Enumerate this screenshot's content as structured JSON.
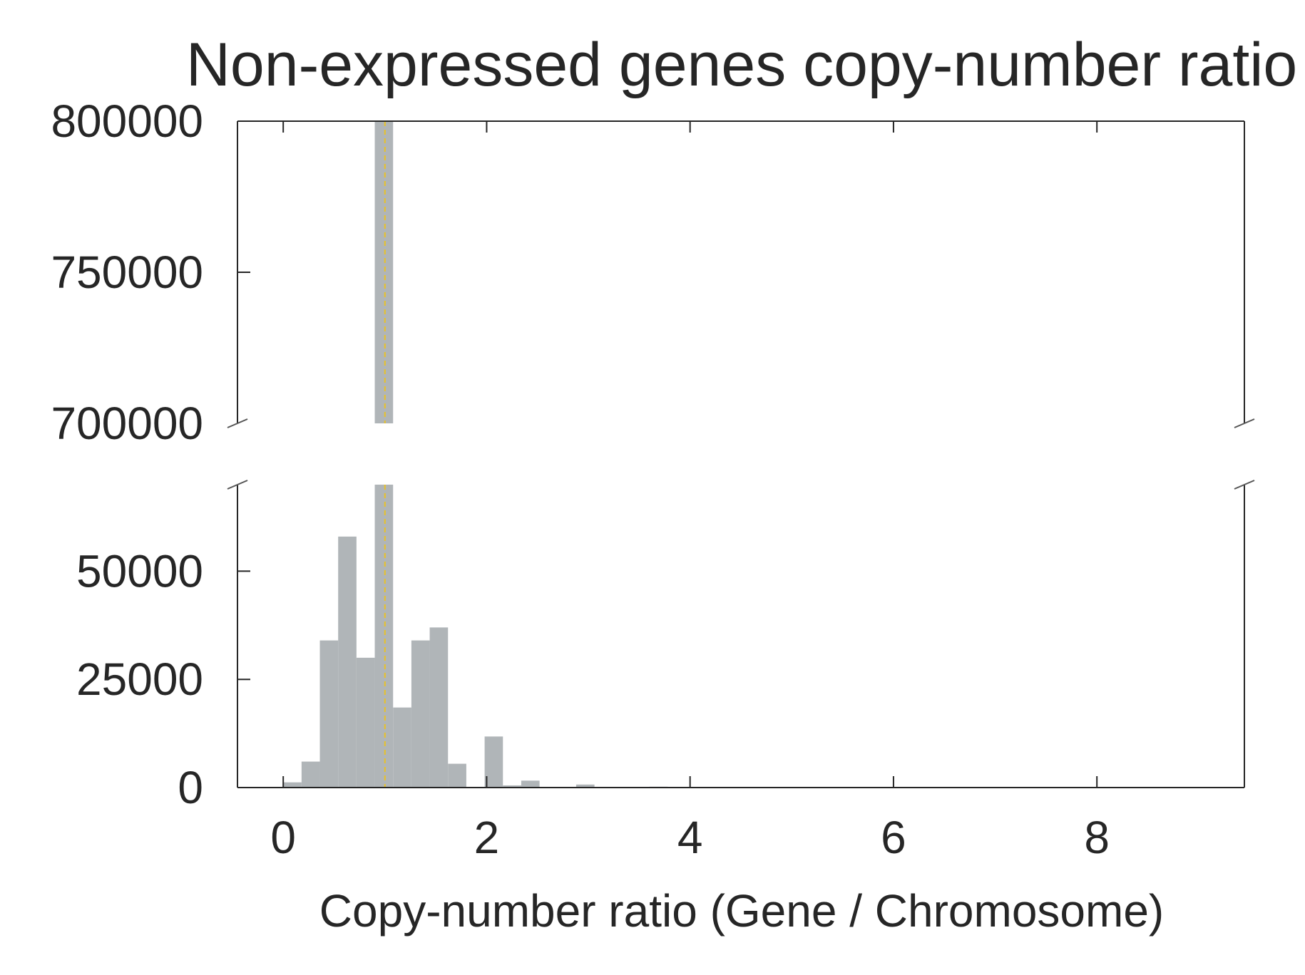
{
  "chart_data": {
    "type": "bar",
    "title": "Non-expressed genes copy-number ratio",
    "xlabel": "Copy-number ratio (Gene / Chromosome)",
    "ylabel": "",
    "xlim": [
      -0.45,
      9.45
    ],
    "xticks": [
      "0",
      "2",
      "4",
      "6",
      "8"
    ],
    "broken_y_axis": true,
    "ylim_top": [
      700000,
      800000
    ],
    "ylim_bottom": [
      0,
      70000
    ],
    "yticks_top": [
      "700000",
      "750000",
      "800000"
    ],
    "yticks_bottom": [
      "0",
      "25000",
      "50000"
    ],
    "grid": false,
    "bar_color": "#b0b5b8",
    "reference_line": {
      "x": 1.0,
      "color": "#e8c229",
      "style": "dashed"
    },
    "bin_width": 0.18,
    "bins": [
      {
        "x0": 0.0,
        "count": 1200
      },
      {
        "x0": 0.18,
        "count": 6000
      },
      {
        "x0": 0.36,
        "count": 34000
      },
      {
        "x0": 0.54,
        "count": 58000
      },
      {
        "x0": 0.72,
        "count": 30000
      },
      {
        "x0": 0.9,
        "count": 800000
      },
      {
        "x0": 1.08,
        "count": 18500
      },
      {
        "x0": 1.26,
        "count": 34000
      },
      {
        "x0": 1.44,
        "count": 37000
      },
      {
        "x0": 1.62,
        "count": 5500
      },
      {
        "x0": 1.8,
        "count": 0
      },
      {
        "x0": 1.98,
        "count": 11800
      },
      {
        "x0": 2.16,
        "count": 500
      },
      {
        "x0": 2.34,
        "count": 1600
      },
      {
        "x0": 2.88,
        "count": 700
      },
      {
        "x0": 3.6,
        "count": 200
      },
      {
        "x0": 4.5,
        "count": 100
      }
    ]
  }
}
